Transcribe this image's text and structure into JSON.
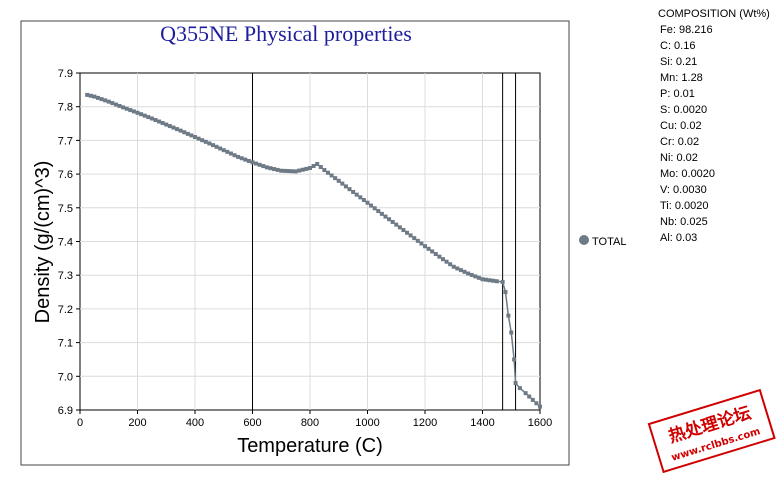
{
  "chart_data": {
    "type": "line",
    "title": "Q355NE  Physical properties",
    "xlabel": "Temperature (C)",
    "ylabel": "Density (g/(cm)^3)",
    "xlim": [
      0,
      1600
    ],
    "ylim": [
      6.9,
      7.9
    ],
    "x_ticks": [
      "0",
      "200",
      "400",
      "600",
      "800",
      "1000",
      "1200",
      "1400",
      "1600"
    ],
    "y_ticks": [
      "6.9",
      "7.0",
      "7.1",
      "7.2",
      "7.3",
      "7.4",
      "7.5",
      "7.6",
      "7.7",
      "7.8",
      "7.9"
    ],
    "grid": true,
    "legend_position": "right",
    "vertical_lines": [
      600,
      1470,
      1515
    ],
    "series": [
      {
        "name": "TOTAL",
        "color": "#6e7a86",
        "x": [
          25,
          50,
          100,
          150,
          200,
          250,
          300,
          350,
          400,
          450,
          500,
          550,
          600,
          650,
          700,
          750,
          800,
          825,
          850,
          900,
          950,
          1000,
          1050,
          1100,
          1150,
          1200,
          1250,
          1300,
          1350,
          1400,
          1450,
          1470,
          1480,
          1490,
          1500,
          1510,
          1515,
          1530,
          1550,
          1575,
          1600
        ],
        "y": [
          7.835,
          7.83,
          7.815,
          7.798,
          7.782,
          7.765,
          7.747,
          7.729,
          7.71,
          7.691,
          7.671,
          7.651,
          7.635,
          7.62,
          7.61,
          7.608,
          7.618,
          7.63,
          7.612,
          7.58,
          7.547,
          7.515,
          7.482,
          7.45,
          7.418,
          7.386,
          7.355,
          7.325,
          7.305,
          7.288,
          7.282,
          7.28,
          7.25,
          7.18,
          7.13,
          7.05,
          6.98,
          6.965,
          6.95,
          6.93,
          6.91
        ]
      }
    ]
  },
  "composition": {
    "title": "COMPOSITION (Wt%)",
    "items": [
      "Fe: 98.216",
      "C: 0.16",
      "Si: 0.21",
      "Mn: 1.28",
      "P: 0.01",
      "S: 0.0020",
      "Cu: 0.02",
      "Cr: 0.02",
      "Ni: 0.02",
      "Mo: 0.0020",
      "V: 0.0030",
      "Ti: 0.0020",
      "Nb: 0.025",
      "Al: 0.03"
    ]
  },
  "watermark": {
    "text": "热处理论坛",
    "url": "www.rclbbs.com"
  }
}
